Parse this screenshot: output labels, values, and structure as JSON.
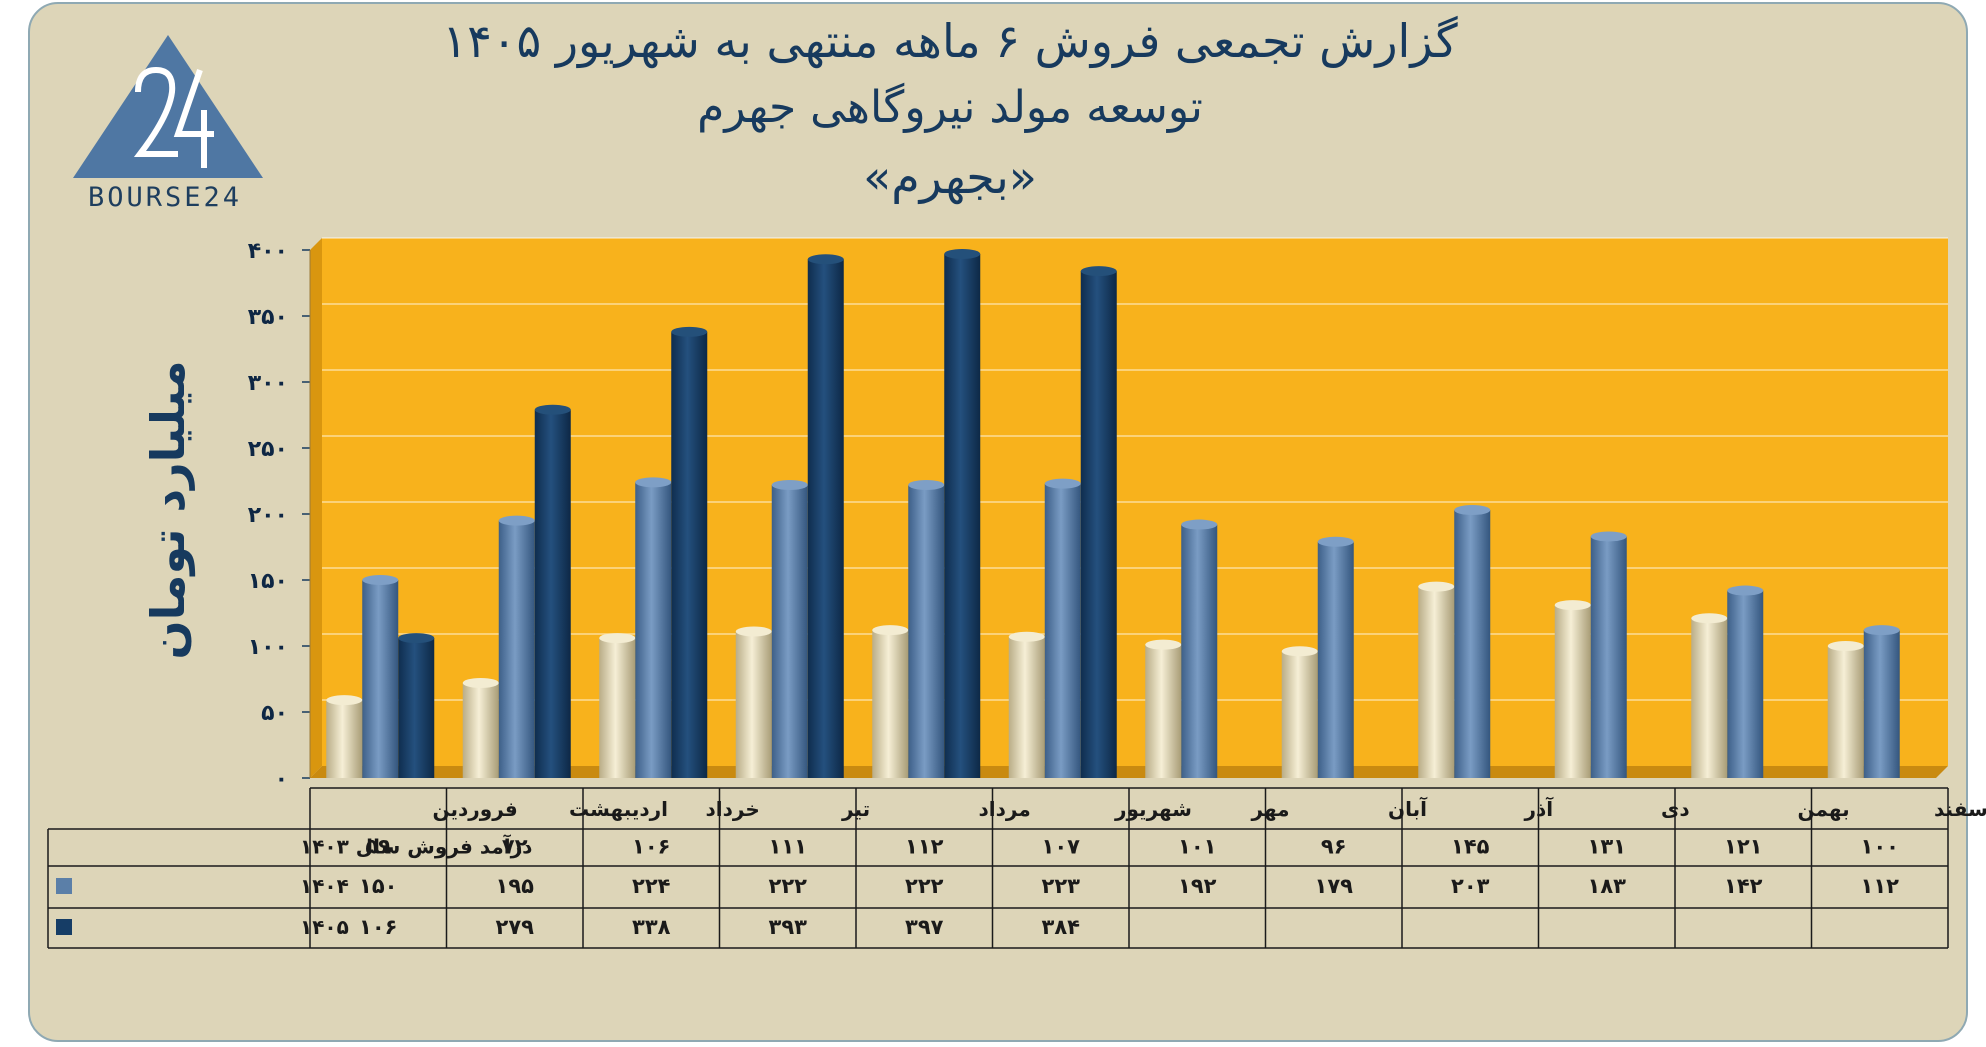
{
  "header": {
    "title_line1": "گزارش تجمعی فروش ۶ ماهه منتهی به شهریور ۱۴۰۵",
    "title_line2": "توسعه مولد نیروگاهی جهرم",
    "title_line3": "«بجهرم»"
  },
  "logo": {
    "mark": "24",
    "text": "BOURSE24",
    "icon": "bourse24-triangle-logo"
  },
  "colors": {
    "panel_bg": "#ddd5b8",
    "plot_bg": "#f8b21c",
    "series_1403": "#e8dfbf",
    "series_1404": "#5b7fa8",
    "series_1405": "#163d66",
    "text_dark": "#173a5e"
  },
  "chart_data": {
    "type": "bar",
    "ylabel": "میلیارد تومان",
    "ylim": [
      0,
      400
    ],
    "yticks": [
      "۰",
      "۵۰",
      "۱۰۰",
      "۱۵۰",
      "۲۰۰",
      "۲۵۰",
      "۳۰۰",
      "۳۵۰",
      "۴۰۰"
    ],
    "grid": true,
    "categories": [
      "فروردین",
      "اردیبهشت",
      "خرداد",
      "تیر",
      "مرداد",
      "شهریور",
      "مهر",
      "آبان",
      "آذر",
      "دی",
      "بهمن",
      "اسفند"
    ],
    "series": [
      {
        "name": "درآمد فروش سال ۱۴۰۳",
        "values": [
          59,
          72,
          106,
          111,
          112,
          107,
          101,
          96,
          145,
          131,
          121,
          100
        ],
        "labels": [
          "۵۹",
          "۷۲",
          "۱۰۶",
          "۱۱۱",
          "۱۱۲",
          "۱۰۷",
          "۱۰۱",
          "۹۶",
          "۱۴۵",
          "۱۳۱",
          "۱۲۱",
          "۱۰۰"
        ]
      },
      {
        "name": "۱۴۰۴",
        "values": [
          150,
          195,
          224,
          222,
          222,
          223,
          192,
          179,
          203,
          183,
          142,
          112
        ],
        "labels": [
          "۱۵۰",
          "۱۹۵",
          "۲۲۴",
          "۲۲۲",
          "۲۲۲",
          "۲۲۳",
          "۱۹۲",
          "۱۷۹",
          "۲۰۳",
          "۱۸۳",
          "۱۴۲",
          "۱۱۲"
        ]
      },
      {
        "name": "۱۴۰۵",
        "values": [
          106,
          279,
          338,
          393,
          397,
          384,
          null,
          null,
          null,
          null,
          null,
          null
        ],
        "labels": [
          "۱۰۶",
          "۲۷۹",
          "۳۳۸",
          "۳۹۳",
          "۳۹۷",
          "۳۸۴",
          "",
          "",
          "",
          "",
          "",
          ""
        ]
      }
    ]
  }
}
